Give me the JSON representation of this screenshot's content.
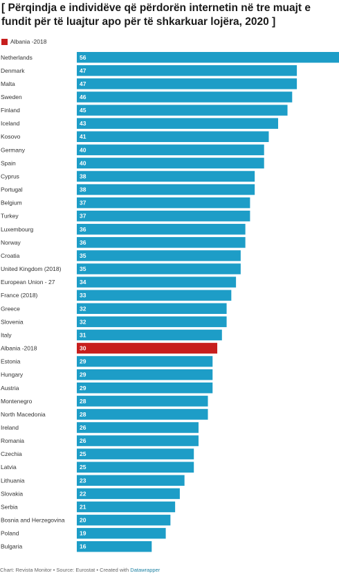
{
  "title": "[ Përqindja e individëve që përdorën internetin në tre muajt e fundit për të luajtur apo për të shkarkuar lojëra, 2020 ]",
  "legend": {
    "label": "Albania -2018",
    "color": "#c71e1d"
  },
  "footer": {
    "chart": "Chart: Revista Monitor",
    "source": "Source: Eurostat",
    "created": "Created with",
    "tool": "Datawrapper",
    "separator": " • "
  },
  "colors": {
    "bar": "#1d9dc7",
    "highlight": "#c71e1d"
  },
  "chart_data": {
    "type": "bar",
    "orientation": "horizontal",
    "xlim": [
      0,
      56
    ],
    "categories": [
      "Netherlands",
      "Denmark",
      "Malta",
      "Sweden",
      "Finland",
      "Iceland",
      "Kosovo",
      "Germany",
      "Spain",
      "Cyprus",
      "Portugal",
      "Belgium",
      "Turkey",
      "Luxembourg",
      "Norway",
      "Croatia",
      "United Kingdom (2018)",
      "European Union - 27",
      "France (2018)",
      "Greece",
      "Slovenia",
      "Italy",
      "Albania -2018",
      "Estonia",
      "Hungary",
      "Austria",
      "Montenegro",
      "North Macedonia",
      "Ireland",
      "Romania",
      "Czechia",
      "Latvia",
      "Lithuania",
      "Slovakia",
      "Serbia",
      "Bosnia and Herzegovina",
      "Poland",
      "Bulgaria"
    ],
    "values": [
      56,
      47,
      47,
      46,
      45,
      43,
      41,
      40,
      40,
      38,
      38,
      37,
      37,
      36,
      36,
      35,
      35,
      34,
      33,
      32,
      32,
      31,
      30,
      29,
      29,
      29,
      28,
      28,
      26,
      26,
      25,
      25,
      23,
      22,
      21,
      20,
      19,
      16
    ],
    "highlight": "Albania -2018"
  }
}
